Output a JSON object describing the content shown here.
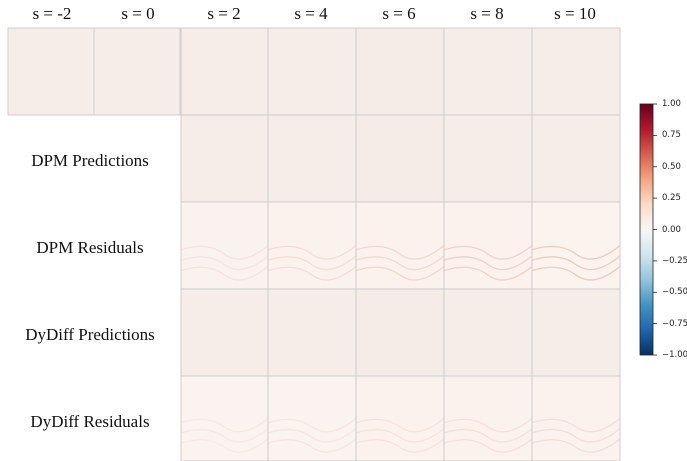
{
  "columns": [
    "s = -2",
    "s = 0",
    "s = 2",
    "s = 4",
    "s = 6",
    "s = 8",
    "s = 10"
  ],
  "rows": [
    {
      "label": "",
      "kind": "truth",
      "start_col": 0
    },
    {
      "label": "DPM Predictions",
      "kind": "pred",
      "start_col": 2
    },
    {
      "label": "DPM Residuals",
      "kind": "resid_dpm",
      "start_col": 2
    },
    {
      "label": "DyDiff Predictions",
      "kind": "pred",
      "start_col": 2
    },
    {
      "label": "DyDiff Residuals",
      "kind": "resid_dydiff",
      "start_col": 2
    }
  ],
  "colorbar": {
    "min": -1.0,
    "max": 1.0,
    "ticks": [
      "1.00",
      "0.75",
      "0.50",
      "0.25",
      "0.00",
      "−0.25",
      "−0.50",
      "−0.75",
      "−1.00"
    ],
    "colormap": "RdBu_r",
    "colors": [
      "#053061",
      "#2166ac",
      "#4393c3",
      "#92c5de",
      "#d1e5f0",
      "#f7f7f7",
      "#fddbc7",
      "#f4a582",
      "#d6604d",
      "#b2182b",
      "#67001f"
    ]
  }
}
